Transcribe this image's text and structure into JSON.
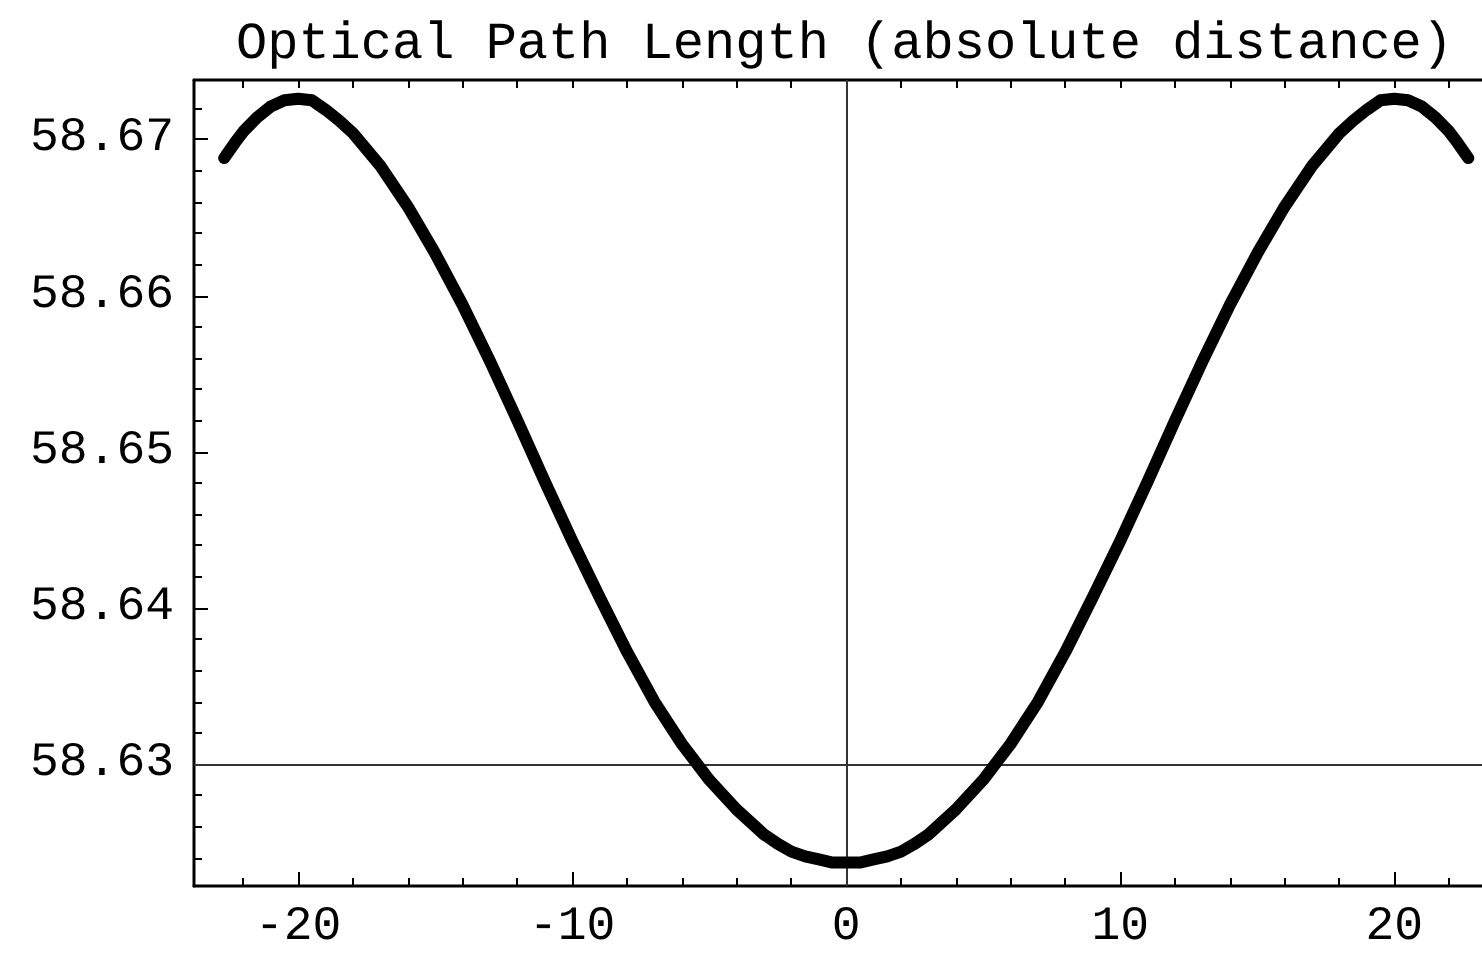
{
  "chart_data": {
    "type": "line",
    "title": "Optical Path Length (absolute distance)",
    "x": [
      -22.7,
      -22.3,
      -22,
      -21.5,
      -21,
      -20.5,
      -20,
      -19.5,
      -19,
      -18.5,
      -18,
      -17,
      -16,
      -15,
      -14,
      -13,
      -12,
      -11,
      -10,
      -9,
      -8,
      -7,
      -6,
      -5,
      -4,
      -3,
      -2.5,
      -2,
      -1.5,
      -1,
      -0.5,
      0,
      0.5,
      1,
      1.5,
      2,
      2.5,
      3,
      4,
      5,
      6,
      7,
      8,
      9,
      10,
      11,
      12,
      13,
      14,
      15,
      16,
      17,
      18,
      18.5,
      19,
      19.5,
      20,
      20.5,
      21,
      21.5,
      22,
      22.3,
      22.7
    ],
    "series": [
      {
        "color": "#000000",
        "values": [
          58.6688,
          58.6698,
          58.6705,
          58.6714,
          58.6721,
          58.6725,
          58.6726,
          58.6725,
          58.6719,
          58.6712,
          58.6704,
          58.6683,
          58.6657,
          58.6627,
          58.6594,
          58.6558,
          58.652,
          58.6481,
          58.6443,
          58.6407,
          58.6372,
          58.634,
          58.6313,
          58.629,
          58.6271,
          58.6255,
          58.6249,
          58.6244,
          58.6241,
          58.6239,
          58.6237,
          58.6237,
          58.6237,
          58.6239,
          58.6241,
          58.6244,
          58.6249,
          58.6255,
          58.6271,
          58.629,
          58.6313,
          58.634,
          58.6372,
          58.6407,
          58.6443,
          58.6481,
          58.652,
          58.6558,
          58.6594,
          58.6627,
          58.6657,
          58.6683,
          58.6704,
          58.6712,
          58.6719,
          58.6725,
          58.6726,
          58.6725,
          58.6721,
          58.6714,
          58.6705,
          58.6698,
          58.6688
        ]
      }
    ],
    "xlim": [
      -23.8,
      23.2
    ],
    "xticks": [
      {
        "value": -22,
        "label": null
      },
      -20,
      {
        "value": -18,
        "label": null
      },
      {
        "value": -16,
        "label": null
      },
      {
        "value": -14,
        "label": null
      },
      {
        "value": -12,
        "label": null
      },
      -10,
      {
        "value": -8,
        "label": null
      },
      {
        "value": -6,
        "label": null
      },
      {
        "value": -4,
        "label": null
      },
      {
        "value": -2,
        "label": null
      },
      0,
      {
        "value": 2,
        "label": null
      },
      {
        "value": 4,
        "label": null
      },
      {
        "value": 6,
        "label": null
      },
      {
        "value": 8,
        "label": null
      },
      10,
      {
        "value": 12,
        "label": null
      },
      {
        "value": 14,
        "label": null
      },
      {
        "value": 16,
        "label": null
      },
      {
        "value": 18,
        "label": null
      },
      20,
      {
        "value": 22,
        "label": null
      }
    ],
    "ylim": [
      58.6222,
      58.6738
    ],
    "yticks": [
      {
        "value": 58.624,
        "label": null
      },
      {
        "value": 58.626,
        "label": null
      },
      {
        "value": 58.628,
        "label": null
      },
      58.63,
      {
        "value": 58.632,
        "label": null
      },
      {
        "value": 58.634,
        "label": null
      },
      {
        "value": 58.636,
        "label": null
      },
      {
        "value": 58.638,
        "label": null
      },
      58.64,
      {
        "value": 58.642,
        "label": null
      },
      {
        "value": 58.644,
        "label": null
      },
      {
        "value": 58.646,
        "label": null
      },
      {
        "value": 58.648,
        "label": null
      },
      58.65,
      {
        "value": 58.652,
        "label": null
      },
      {
        "value": 58.654,
        "label": null
      },
      {
        "value": 58.656,
        "label": null
      },
      {
        "value": 58.658,
        "label": null
      },
      58.66,
      {
        "value": 58.662,
        "label": null
      },
      {
        "value": 58.664,
        "label": null
      },
      {
        "value": 58.666,
        "label": null
      },
      {
        "value": 58.668,
        "label": null
      },
      58.67,
      {
        "value": 58.672,
        "label": null
      }
    ],
    "grid": false,
    "marker": "none",
    "line_style": "solid",
    "ref_lines": [
      {
        "axis": "y",
        "value": 58.63,
        "color": "#333333"
      },
      {
        "axis": "x",
        "value": 0,
        "color": "#333333"
      }
    ]
  }
}
